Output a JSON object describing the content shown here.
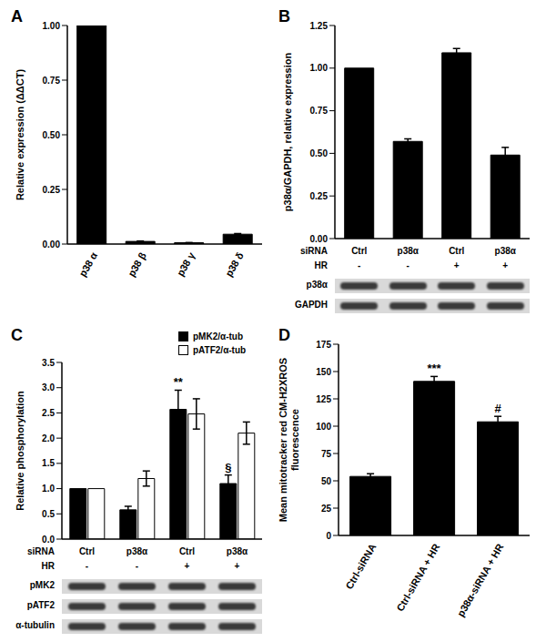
{
  "chart_data": [
    {
      "panel": "A",
      "type": "bar",
      "y_label": "Relative expression (ΔΔCT)",
      "categories": [
        "p38 α",
        "p38 β",
        "p38 γ",
        "p38 δ"
      ],
      "values": [
        1,
        0.012,
        0.006,
        0.045
      ],
      "errors": [
        0,
        0.002,
        0.001,
        0.003
      ],
      "color": "#000000",
      "ylim": [
        0,
        1
      ],
      "yticks": [
        {
          "value": 0,
          "label": "0.00"
        },
        0.25,
        {
          "value": 0.5,
          "label": "0.50"
        },
        0.75,
        {
          "value": 1,
          "label": "1.00"
        }
      ]
    },
    {
      "panel": "B",
      "type": "bar",
      "y_label": "p38α/GAPDH, relative expression",
      "values": [
        1,
        0.57,
        1.09,
        0.49
      ],
      "errors": [
        0,
        0.015,
        0.025,
        0.045
      ],
      "color": "#000000",
      "ylim": [
        0,
        1.25
      ],
      "yticks": [
        {
          "value": 0,
          "label": "0.00"
        },
        0.25,
        {
          "value": 0.5,
          "label": "0.50"
        },
        0.75,
        {
          "value": 1,
          "label": "1.00"
        },
        1.25
      ],
      "tick_labels": "y",
      "conditions": [
        {
          "label": "siRNA",
          "values": [
            "Ctrl",
            "p38α",
            "Ctrl",
            "p38α"
          ]
        },
        {
          "label": "HR",
          "values": [
            "-",
            "-",
            "+",
            "+"
          ]
        }
      ],
      "blots": [
        "p38α",
        "GAPDH"
      ]
    },
    {
      "panel": "C",
      "type": "bar",
      "y_label": "Relative phosphorylation",
      "series": [
        {
          "name": "pMK2/α-tub",
          "color": "#000000",
          "values": [
            1,
            0.58,
            2.57,
            1.1
          ],
          "errors": [
            0,
            0.07,
            0.38,
            0.17
          ]
        },
        {
          "name": "pATF2/α-tub",
          "color": "#ffffff",
          "values": [
            1,
            1.2,
            2.48,
            2.1
          ],
          "errors": [
            0,
            0.15,
            0.3,
            0.22
          ]
        }
      ],
      "ylim": [
        0,
        3.5
      ],
      "yticks": [
        {
          "value": 0,
          "label": "0.0"
        },
        0.5,
        {
          "value": 1,
          "label": "1.0"
        },
        1.5,
        {
          "value": 2,
          "label": "2.0"
        },
        2.5,
        {
          "value": 3,
          "label": "3.0"
        },
        3.5
      ],
      "tick_labels": "y",
      "legend": "upper right",
      "annotations": [
        {
          "text": "**",
          "series": "pMK2/α-tub",
          "index": 2
        },
        {
          "text": "§",
          "series": "pMK2/α-tub",
          "index": 3
        }
      ],
      "conditions": [
        {
          "label": "siRNA",
          "values": [
            "Ctrl",
            "p38α",
            "Ctrl",
            "p38α"
          ]
        },
        {
          "label": "HR",
          "values": [
            "-",
            "-",
            "+",
            "+"
          ]
        }
      ],
      "blots": [
        "pMK2",
        "pATF2",
        "α-tubulin"
      ]
    },
    {
      "panel": "D",
      "type": "bar",
      "y_label": "Mean mitotracker red CM-H2XROS fluorescence",
      "categories": [
        "Ctrl-siRNA",
        "Ctrl-siRNA + HR",
        "p38α-siRNA + HR"
      ],
      "values": [
        54,
        141,
        104
      ],
      "errors": [
        2.5,
        4.5,
        5
      ],
      "color": "#000000",
      "ylim": [
        0,
        175
      ],
      "yticks": [
        0,
        25,
        50,
        75,
        100,
        125,
        150,
        175
      ],
      "annotations": [
        {
          "text": "***",
          "index": 1
        },
        {
          "text": "#",
          "index": 2
        }
      ]
    }
  ]
}
